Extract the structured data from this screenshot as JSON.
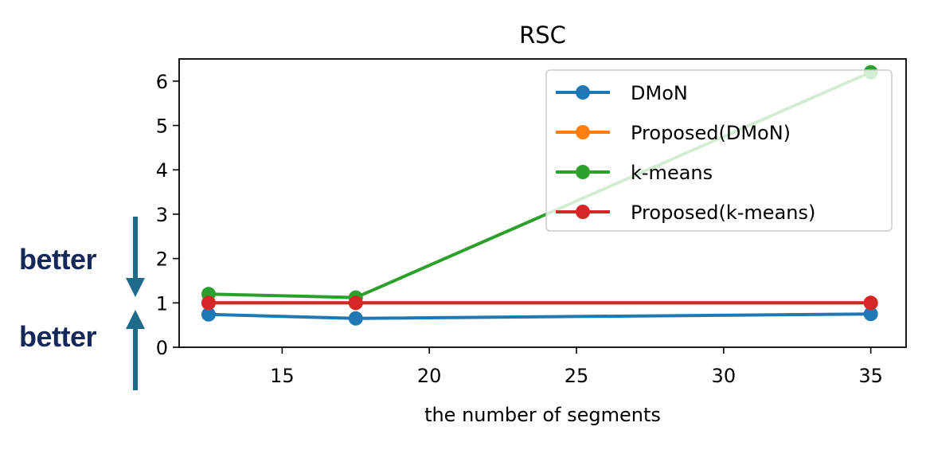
{
  "chart_data": {
    "type": "line",
    "title": "RSC",
    "xlabel": "the number of segments",
    "ylabel": "",
    "xlim": [
      11.5,
      36.2
    ],
    "ylim": [
      0,
      6.5
    ],
    "xticks": [
      15,
      20,
      25,
      30,
      35
    ],
    "yticks": [
      0,
      1,
      2,
      3,
      4,
      5,
      6
    ],
    "grid": false,
    "legend_position": "top-right",
    "series": [
      {
        "name": "DMoN",
        "color": "#1f77b4",
        "x": [
          12.5,
          17.5,
          35
        ],
        "y": [
          0.74,
          0.65,
          0.75
        ]
      },
      {
        "name": "Proposed(DMoN)",
        "color": "#ff7f0e",
        "x": [
          12.5,
          17.5,
          35
        ],
        "y": [
          1.0,
          1.0,
          1.0
        ]
      },
      {
        "name": "k-means",
        "color": "#2ca02c",
        "x": [
          12.5,
          17.5,
          35
        ],
        "y": [
          1.2,
          1.12,
          6.2
        ]
      },
      {
        "name": "Proposed(k-means)",
        "color": "#d62728",
        "x": [
          12.5,
          17.5,
          35
        ],
        "y": [
          1.0,
          1.0,
          1.0
        ]
      }
    ]
  },
  "annotations": {
    "better_down_label": "better",
    "better_up_label": "better",
    "arrow_color": "#1d6a8a"
  }
}
